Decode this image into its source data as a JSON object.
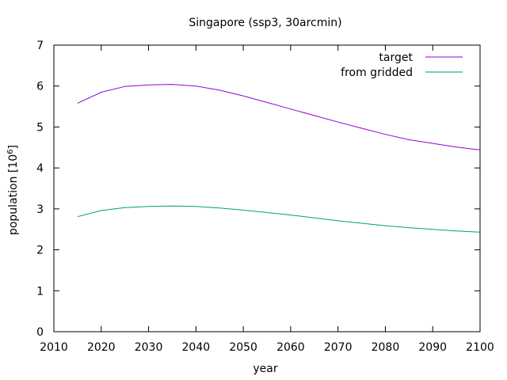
{
  "chart_data": {
    "type": "line",
    "title": "Singapore (ssp3, 30arcmin)",
    "xlabel": "year",
    "ylabel_text": "population [10",
    "ylabel_exponent": "6",
    "ylabel_close": "]",
    "xlim": [
      2010,
      2100
    ],
    "ylim": [
      0,
      7
    ],
    "xticks": [
      2010,
      2020,
      2030,
      2040,
      2050,
      2060,
      2070,
      2080,
      2090,
      2100
    ],
    "yticks": [
      0,
      1,
      2,
      3,
      4,
      5,
      6,
      7
    ],
    "grid": false,
    "legend_position": "top-right",
    "series": [
      {
        "name": "target",
        "color": "#9400d3",
        "x": [
          2015,
          2020,
          2025,
          2030,
          2035,
          2040,
          2045,
          2050,
          2055,
          2060,
          2065,
          2070,
          2075,
          2080,
          2085,
          2090,
          2095,
          2100
        ],
        "y": [
          5.58,
          5.85,
          5.99,
          6.03,
          6.04,
          6.0,
          5.9,
          5.76,
          5.6,
          5.44,
          5.28,
          5.12,
          4.97,
          4.82,
          4.69,
          4.6,
          4.51,
          4.44
        ]
      },
      {
        "name": "from gridded",
        "color": "#009e73",
        "x": [
          2015,
          2020,
          2025,
          2030,
          2035,
          2040,
          2045,
          2050,
          2055,
          2060,
          2065,
          2070,
          2075,
          2080,
          2085,
          2090,
          2095,
          2100
        ],
        "y": [
          2.81,
          2.96,
          3.03,
          3.06,
          3.07,
          3.06,
          3.02,
          2.97,
          2.91,
          2.85,
          2.78,
          2.71,
          2.65,
          2.59,
          2.54,
          2.5,
          2.46,
          2.43
        ]
      }
    ]
  }
}
